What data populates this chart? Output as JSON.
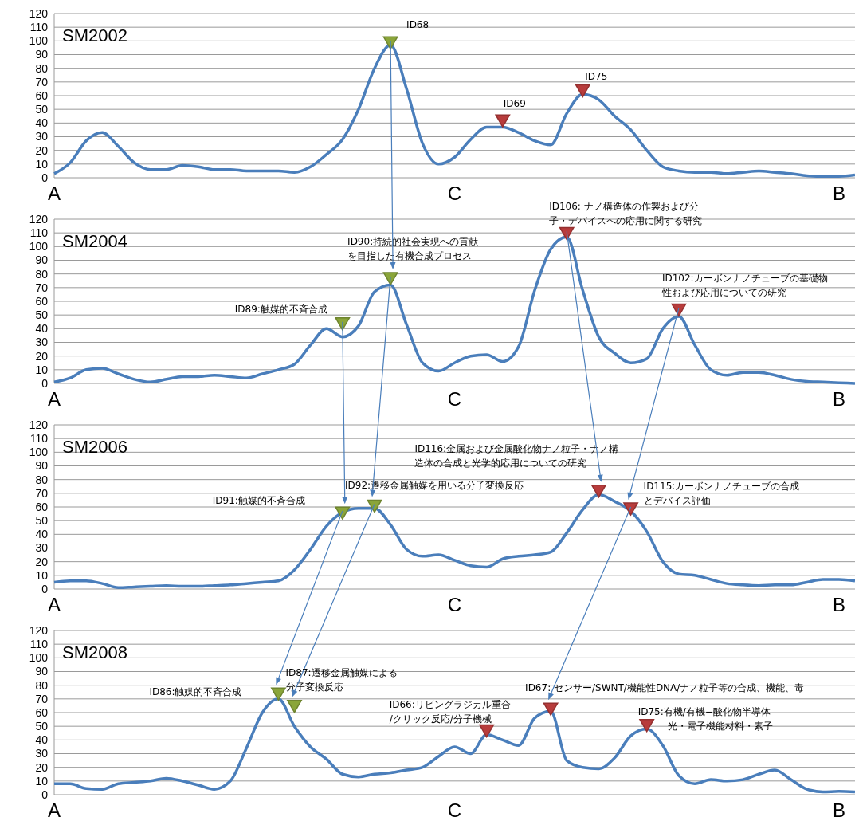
{
  "chart_data": [
    {
      "type": "line",
      "title": "SM2002",
      "categories": [
        "A",
        null,
        null,
        null,
        null,
        null,
        null,
        null,
        null,
        null,
        null,
        null,
        null,
        null,
        null,
        null,
        null,
        null,
        null,
        null,
        null,
        null,
        null,
        null,
        null,
        "C",
        null,
        null,
        null,
        null,
        null,
        null,
        null,
        null,
        null,
        null,
        null,
        null,
        null,
        null,
        null,
        null,
        null,
        null,
        null,
        null,
        null,
        null,
        null,
        "B",
        null
      ],
      "ylim": [
        0,
        120
      ],
      "yticks": [
        0,
        10,
        20,
        30,
        40,
        50,
        60,
        70,
        80,
        90,
        100,
        110,
        120
      ],
      "grid": "y",
      "series": [
        {
          "color": "#4a7ebb",
          "values": [
            3,
            11,
            27,
            33,
            23,
            11,
            6,
            6,
            9,
            8,
            6,
            6,
            5,
            5,
            5,
            4,
            8,
            17,
            28,
            50,
            80,
            97,
            65,
            25,
            10,
            15,
            28,
            37,
            37,
            33,
            27,
            24,
            47,
            61,
            57,
            45,
            35,
            20,
            8,
            5,
            4,
            4,
            3,
            4,
            5,
            4,
            3,
            1.5,
            1,
            1,
            2
          ]
        },
        {
          "type": "scatter",
          "marker": "triangle",
          "values": [
            null,
            null,
            null,
            null,
            null,
            null,
            null,
            null,
            null,
            null,
            null,
            null,
            null,
            null,
            null,
            null,
            null,
            null,
            null,
            null,
            null,
            100,
            null,
            null,
            null,
            null,
            null,
            null,
            43,
            null,
            null,
            null,
            null,
            65,
            null,
            null,
            null,
            null,
            null,
            null,
            null,
            null,
            null,
            null,
            null,
            null,
            null,
            null,
            null,
            null,
            null
          ],
          "colors": [
            null,
            null,
            null,
            null,
            null,
            null,
            null,
            null,
            null,
            null,
            null,
            null,
            null,
            null,
            null,
            null,
            null,
            null,
            null,
            null,
            null,
            "#8aa53a",
            null,
            null,
            null,
            null,
            null,
            null,
            "#b83c3c",
            null,
            null,
            null,
            null,
            "#b83c3c",
            null,
            null,
            null,
            null,
            null,
            null,
            null,
            null,
            null,
            null,
            null,
            null,
            null,
            null,
            null,
            null,
            null
          ]
        }
      ],
      "annotations": [
        "ID68",
        "ID69",
        "ID75"
      ]
    },
    {
      "type": "line",
      "title": "SM2004",
      "categories": [
        "A",
        null,
        null,
        null,
        null,
        null,
        null,
        null,
        null,
        null,
        null,
        null,
        null,
        null,
        null,
        null,
        null,
        null,
        null,
        null,
        null,
        null,
        null,
        null,
        null,
        "C",
        null,
        null,
        null,
        null,
        null,
        null,
        null,
        null,
        null,
        null,
        null,
        null,
        null,
        null,
        null,
        null,
        null,
        null,
        null,
        null,
        null,
        null,
        null,
        "B",
        null
      ],
      "ylim": [
        0,
        120
      ],
      "yticks": [
        0,
        10,
        20,
        30,
        40,
        50,
        60,
        70,
        80,
        90,
        100,
        110,
        120
      ],
      "grid": "y",
      "series": [
        {
          "color": "#4a7ebb",
          "values": [
            1,
            4,
            10,
            11,
            7,
            3,
            1,
            3,
            5,
            5,
            6,
            5,
            4,
            7,
            10,
            14,
            28,
            40,
            34,
            42,
            67,
            72,
            43,
            15,
            9,
            15,
            20,
            21,
            16,
            27,
            68,
            98,
            107,
            68,
            34,
            22,
            15,
            18,
            40,
            49,
            28,
            10,
            6,
            8,
            8,
            6,
            3,
            1.5,
            1,
            0.5,
            0
          ]
        },
        {
          "type": "scatter",
          "marker": "triangle",
          "values": [
            null,
            null,
            null,
            null,
            null,
            null,
            null,
            null,
            null,
            null,
            null,
            null,
            null,
            null,
            null,
            null,
            null,
            null,
            45,
            null,
            null,
            78,
            null,
            null,
            null,
            null,
            null,
            null,
            null,
            null,
            null,
            null,
            111,
            null,
            null,
            null,
            null,
            null,
            null,
            55,
            null,
            null,
            null,
            null,
            null,
            null,
            null,
            null,
            null,
            null,
            null
          ],
          "colors": [
            null,
            null,
            null,
            null,
            null,
            null,
            null,
            null,
            null,
            null,
            null,
            null,
            null,
            null,
            null,
            null,
            null,
            null,
            "#8aa53a",
            null,
            null,
            "#8aa53a",
            null,
            null,
            null,
            null,
            null,
            null,
            null,
            null,
            null,
            null,
            "#b83c3c",
            null,
            null,
            null,
            null,
            null,
            null,
            "#b83c3c",
            null,
            null,
            null,
            null,
            null,
            null,
            null,
            null,
            null,
            null,
            null
          ]
        }
      ],
      "annotations": [
        "ID89:触媒的不斉合成",
        "ID90:持続的社会実現への貢献を目指した有機合成プロセス",
        "ID106: ナノ構造体の作製および分子・デバイスへの応用に関する研究",
        "ID102:カーボンナノチューブの基礎物性および応用についての研究"
      ]
    },
    {
      "type": "line",
      "title": "SM2006",
      "categories": [
        "A",
        null,
        null,
        null,
        null,
        null,
        null,
        null,
        null,
        null,
        null,
        null,
        null,
        null,
        null,
        null,
        null,
        null,
        null,
        null,
        null,
        null,
        null,
        null,
        null,
        "C",
        null,
        null,
        null,
        null,
        null,
        null,
        null,
        null,
        null,
        null,
        null,
        null,
        null,
        null,
        null,
        null,
        null,
        null,
        null,
        null,
        null,
        null,
        null,
        "B",
        null
      ],
      "ylim": [
        0,
        120
      ],
      "yticks": [
        0,
        10,
        20,
        30,
        40,
        50,
        60,
        70,
        80,
        90,
        100,
        110,
        120
      ],
      "grid": "y",
      "series": [
        {
          "color": "#4a7ebb",
          "values": [
            5,
            6,
            6,
            4,
            1,
            1.5,
            2,
            2.5,
            2,
            2,
            2.5,
            3,
            4,
            5,
            6,
            14,
            29,
            46,
            56,
            59,
            59,
            47,
            29,
            24,
            25,
            21,
            17,
            16,
            22,
            24,
            25,
            27,
            41,
            58,
            69,
            64,
            57,
            42,
            20,
            11,
            10,
            7,
            4,
            3,
            2.5,
            3,
            3,
            5,
            7,
            7,
            6
          ]
        },
        {
          "type": "scatter",
          "marker": "triangle",
          "values": [
            null,
            null,
            null,
            null,
            null,
            null,
            null,
            null,
            null,
            null,
            null,
            null,
            null,
            null,
            null,
            null,
            null,
            null,
            57,
            null,
            62,
            null,
            null,
            null,
            null,
            null,
            null,
            null,
            null,
            null,
            null,
            null,
            null,
            null,
            73,
            null,
            60,
            null,
            null,
            null,
            null,
            null,
            null,
            null,
            null,
            null,
            null,
            null,
            null,
            null,
            null
          ],
          "colors": [
            null,
            null,
            null,
            null,
            null,
            null,
            null,
            null,
            null,
            null,
            null,
            null,
            null,
            null,
            null,
            null,
            null,
            null,
            "#8aa53a",
            null,
            "#8aa53a",
            null,
            null,
            null,
            null,
            null,
            null,
            null,
            null,
            null,
            null,
            null,
            null,
            null,
            "#b83c3c",
            null,
            "#b83c3c",
            null,
            null,
            null,
            null,
            null,
            null,
            null,
            null,
            null,
            null,
            null,
            null,
            null,
            null
          ]
        }
      ],
      "annotations": [
        "ID91:触媒的不斉合成",
        "ID92:遷移金属触媒を用いる分子変換反応",
        "ID116:金属および金属酸化物ナノ粒子・ナノ構造体の合成と光学的応用についての研究",
        "ID115:カーボンナノチューブの合成とデバイス評価"
      ]
    },
    {
      "type": "line",
      "title": "SM2008",
      "categories": [
        "A",
        null,
        null,
        null,
        null,
        null,
        null,
        null,
        null,
        null,
        null,
        null,
        null,
        null,
        null,
        null,
        null,
        null,
        null,
        null,
        null,
        null,
        null,
        null,
        null,
        "C",
        null,
        null,
        null,
        null,
        null,
        null,
        null,
        null,
        null,
        null,
        null,
        null,
        null,
        null,
        null,
        null,
        null,
        null,
        null,
        null,
        null,
        null,
        null,
        "B",
        null
      ],
      "ylim": [
        0,
        120
      ],
      "yticks": [
        0,
        10,
        20,
        30,
        40,
        50,
        60,
        70,
        80,
        90,
        100,
        110,
        120
      ],
      "grid": "y",
      "series": [
        {
          "color": "#4a7ebb",
          "values": [
            8,
            8,
            4.5,
            4,
            8,
            9,
            10,
            12,
            10,
            7,
            4,
            10,
            34,
            60,
            70,
            50,
            35,
            26,
            15,
            13,
            15,
            16,
            18,
            20,
            28,
            35,
            30,
            44,
            40,
            36,
            56,
            61,
            25,
            20,
            19,
            27,
            43,
            48,
            36,
            14,
            8,
            11,
            10,
            11,
            15,
            18,
            11,
            4,
            2,
            2.5,
            2
          ]
        },
        {
          "type": "scatter",
          "marker": "triangle",
          "values": [
            null,
            null,
            null,
            null,
            null,
            null,
            null,
            null,
            null,
            null,
            null,
            null,
            null,
            null,
            75,
            66,
            null,
            null,
            null,
            null,
            null,
            null,
            null,
            null,
            null,
            null,
            null,
            48,
            null,
            null,
            null,
            64,
            null,
            null,
            null,
            null,
            null,
            52,
            null,
            null,
            null,
            null,
            null,
            null,
            null,
            null,
            null,
            null,
            null,
            null,
            null
          ],
          "colors": [
            null,
            null,
            null,
            null,
            null,
            null,
            null,
            null,
            null,
            null,
            null,
            null,
            null,
            null,
            "#8aa53a",
            "#8aa53a",
            null,
            null,
            null,
            null,
            null,
            null,
            null,
            null,
            null,
            null,
            null,
            "#b83c3c",
            null,
            null,
            null,
            "#b83c3c",
            null,
            null,
            null,
            null,
            null,
            "#b83c3c",
            null,
            null,
            null,
            null,
            null,
            null,
            null,
            null,
            null,
            null,
            null,
            null,
            null
          ]
        }
      ],
      "annotations": [
        "ID86:触媒的不斉合成",
        "ID87:遷移金属触媒による分子変換反応",
        "ID66:リビングラジカル重合/クリック反応/分子機械",
        "ID67: センサー/SWNT/機能性DNA/ナノ粒子等の合成、機能、毒",
        "ID75:有機/有機−酸化物半導体光・電子機能材料・素子"
      ]
    }
  ]
}
